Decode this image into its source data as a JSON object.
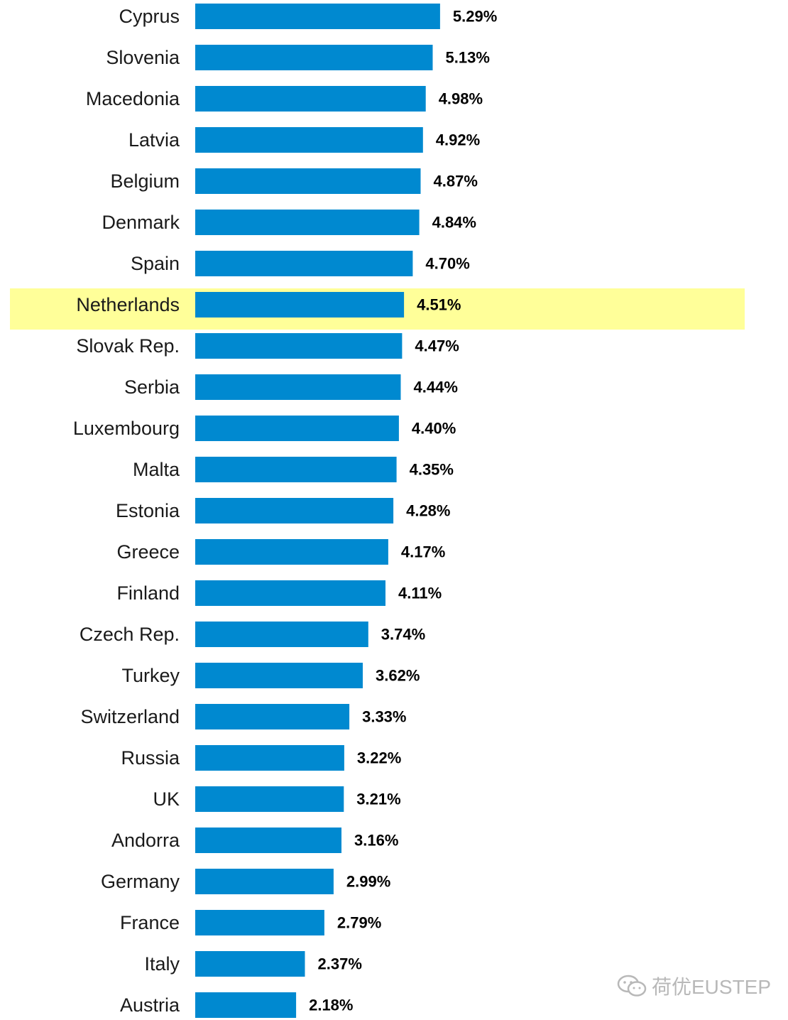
{
  "chart_data": {
    "type": "bar",
    "orientation": "horizontal",
    "title": "",
    "xlabel": "",
    "ylabel": "",
    "categories": [
      "Cyprus",
      "Slovenia",
      "Macedonia",
      "Latvia",
      "Belgium",
      "Denmark",
      "Spain",
      "Netherlands",
      "Slovak Rep.",
      "Serbia",
      "Luxembourg",
      "Malta",
      "Estonia",
      "Greece",
      "Finland",
      "Czech Rep.",
      "Turkey",
      "Switzerland",
      "Russia",
      "UK",
      "Andorra",
      "Germany",
      "France",
      "Italy",
      "Austria"
    ],
    "values": [
      5.29,
      5.13,
      4.98,
      4.92,
      4.87,
      4.84,
      4.7,
      4.51,
      4.47,
      4.44,
      4.4,
      4.35,
      4.28,
      4.17,
      4.11,
      3.74,
      3.62,
      3.33,
      3.22,
      3.21,
      3.16,
      2.99,
      2.79,
      2.37,
      2.18
    ],
    "value_labels": [
      "5.29%",
      "5.13%",
      "4.98%",
      "4.92%",
      "4.87%",
      "4.84%",
      "4.70%",
      "4.51%",
      "4.47%",
      "4.44%",
      "4.40%",
      "4.35%",
      "4.28%",
      "4.17%",
      "4.11%",
      "3.74%",
      "3.62%",
      "3.33%",
      "3.22%",
      "3.21%",
      "3.16%",
      "2.99%",
      "2.79%",
      "2.37%",
      "2.18%"
    ],
    "highlighted_category": "Netherlands",
    "xlim": [
      0,
      6
    ],
    "grid": false,
    "bar_color": "#0089D0",
    "highlight_color": "#FFFF99"
  },
  "watermark": {
    "text": "荷优EUSTEP",
    "icon": "wechat-icon"
  }
}
